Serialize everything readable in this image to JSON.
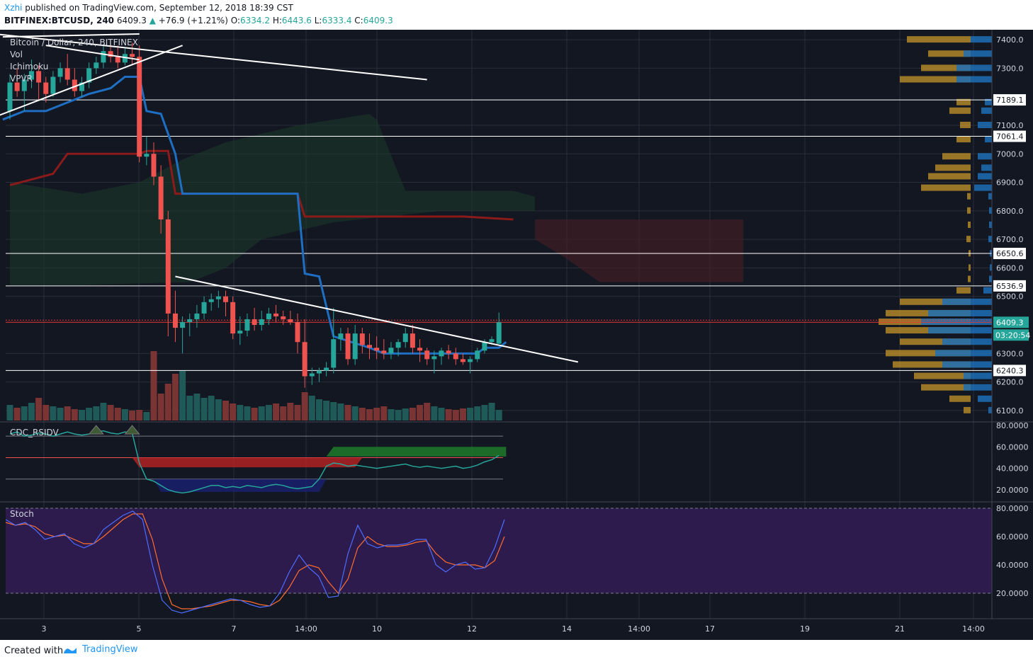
{
  "header": {
    "user": "Xzhi",
    "published": "published on TradingView.com, September 12, 2018 18:39 CST",
    "symbol": "BITFINEX:BTCUSD, 240",
    "last": "6409.3",
    "change_arrow": "▲",
    "change": "+76.9 (+1.21%)",
    "o_label": "O:",
    "o": "6334.2",
    "h_label": "H:",
    "h": "6443.6",
    "l_label": "L:",
    "l": "6333.4",
    "c_label": "C:",
    "c": "6409.3"
  },
  "legend": {
    "title": "Bitcoin / Dollar, 240, BITFINEX",
    "items": [
      "Vol",
      "Ichimoku",
      "VPVR"
    ],
    "rsi_label": "CDC_RSIDV",
    "stoch_label": "Stoch"
  },
  "footer": {
    "created": "Created with",
    "brand": "TradingView",
    "logo_icon": "tradingview-logo-icon"
  },
  "colors": {
    "background": "#131722",
    "bull": "#26a69a",
    "bear": "#ef5350",
    "kijun": "#8b1a1a",
    "tenkan": "#1e6fc4",
    "vol_bull": "#1f5a58",
    "vol_bear": "#7a3434",
    "vpvr_up": "#1f6eb5",
    "vpvr_down": "#c5962a",
    "stoch_k": "#4b6dff",
    "stoch_d": "#ff6d2d",
    "stoch_bg": "#2d1b4e"
  },
  "chart_data": {
    "type": "candlestick",
    "price_axis": {
      "ticks": [
        {
          "v": 7400,
          "label": "7400.0"
        },
        {
          "v": 7300,
          "label": "7300.0"
        },
        {
          "v": 7100,
          "label": "7100.0"
        },
        {
          "v": 7000,
          "label": "7000.0"
        },
        {
          "v": 6900,
          "label": "6900.0"
        },
        {
          "v": 6800,
          "label": "6800.0"
        },
        {
          "v": 6700,
          "label": "6700.0"
        },
        {
          "v": 6600,
          "label": "6600.0"
        },
        {
          "v": 6500,
          "label": "6500.0"
        },
        {
          "v": 6300,
          "label": "6300.0"
        },
        {
          "v": 6200,
          "label": "6200.0"
        },
        {
          "v": 6100,
          "label": "6100.0"
        }
      ],
      "range": [
        6065,
        7435
      ]
    },
    "horizontal_levels": [
      {
        "v": 7189.1,
        "label": "7189.1"
      },
      {
        "v": 7061.4,
        "label": "7061.4"
      },
      {
        "v": 6650.6,
        "label": "6650.6"
      },
      {
        "v": 6536.9,
        "label": "6536.9"
      },
      {
        "v": 6240.3,
        "label": "6240.3"
      }
    ],
    "last_price": {
      "v": 6409.3,
      "label": "6409.3",
      "countdown": "03:20:54"
    },
    "time_axis": [
      "3",
      "5",
      "7",
      "14:00",
      "10",
      "12",
      "14",
      "14:00",
      "17",
      "19",
      "21",
      "14:00"
    ],
    "candles": [
      [
        7150,
        7280,
        7120,
        7250
      ],
      [
        7250,
        7300,
        7200,
        7220
      ],
      [
        7220,
        7280,
        7150,
        7260
      ],
      [
        7260,
        7330,
        7230,
        7290
      ],
      [
        7290,
        7310,
        7190,
        7250
      ],
      [
        7250,
        7270,
        7180,
        7210
      ],
      [
        7210,
        7290,
        7200,
        7270
      ],
      [
        7270,
        7320,
        7250,
        7300
      ],
      [
        7300,
        7350,
        7240,
        7260
      ],
      [
        7260,
        7300,
        7200,
        7220
      ],
      [
        7220,
        7270,
        7200,
        7250
      ],
      [
        7250,
        7320,
        7230,
        7300
      ],
      [
        7300,
        7340,
        7280,
        7320
      ],
      [
        7320,
        7380,
        7300,
        7360
      ],
      [
        7360,
        7400,
        7320,
        7340
      ],
      [
        7340,
        7380,
        7300,
        7320
      ],
      [
        7320,
        7370,
        7310,
        7350
      ],
      [
        7350,
        7390,
        7310,
        7340
      ],
      [
        7340,
        7380,
        6970,
        6990
      ],
      [
        6990,
        7060,
        6960,
        7000
      ],
      [
        7000,
        7040,
        6890,
        6920
      ],
      [
        6920,
        6960,
        6720,
        6770
      ],
      [
        6770,
        6800,
        6360,
        6440
      ],
      [
        6440,
        6520,
        6340,
        6390
      ],
      [
        6390,
        6430,
        6300,
        6410
      ],
      [
        6410,
        6440,
        6360,
        6420
      ],
      [
        6420,
        6470,
        6390,
        6440
      ],
      [
        6440,
        6500,
        6420,
        6480
      ],
      [
        6480,
        6510,
        6450,
        6490
      ],
      [
        6490,
        6520,
        6460,
        6500
      ],
      [
        6500,
        6520,
        6430,
        6480
      ],
      [
        6480,
        6500,
        6350,
        6370
      ],
      [
        6370,
        6430,
        6330,
        6380
      ],
      [
        6380,
        6440,
        6360,
        6420
      ],
      [
        6420,
        6460,
        6380,
        6400
      ],
      [
        6400,
        6450,
        6380,
        6420
      ],
      [
        6420,
        6460,
        6400,
        6440
      ],
      [
        6440,
        6470,
        6410,
        6430
      ],
      [
        6430,
        6450,
        6400,
        6420
      ],
      [
        6420,
        6450,
        6400,
        6410
      ],
      [
        6410,
        6440,
        6300,
        6340
      ],
      [
        6340,
        6420,
        6180,
        6220
      ],
      [
        6220,
        6250,
        6190,
        6230
      ],
      [
        6230,
        6250,
        6200,
        6240
      ],
      [
        6240,
        6270,
        6220,
        6250
      ],
      [
        6250,
        6460,
        6230,
        6350
      ],
      [
        6350,
        6390,
        6310,
        6370
      ],
      [
        6370,
        6390,
        6260,
        6280
      ],
      [
        6280,
        6400,
        6260,
        6370
      ],
      [
        6370,
        6390,
        6300,
        6330
      ],
      [
        6330,
        6370,
        6280,
        6320
      ],
      [
        6320,
        6360,
        6280,
        6310
      ],
      [
        6310,
        6350,
        6280,
        6300
      ],
      [
        6300,
        6340,
        6280,
        6320
      ],
      [
        6320,
        6350,
        6290,
        6340
      ],
      [
        6340,
        6390,
        6320,
        6370
      ],
      [
        6370,
        6400,
        6300,
        6320
      ],
      [
        6320,
        6350,
        6270,
        6310
      ],
      [
        6310,
        6320,
        6260,
        6280
      ],
      [
        6280,
        6310,
        6230,
        6290
      ],
      [
        6290,
        6320,
        6260,
        6310
      ],
      [
        6310,
        6330,
        6280,
        6300
      ],
      [
        6300,
        6320,
        6260,
        6280
      ],
      [
        6280,
        6300,
        6260,
        6270
      ],
      [
        6270,
        6290,
        6230,
        6280
      ],
      [
        6280,
        6320,
        6270,
        6310
      ],
      [
        6310,
        6350,
        6300,
        6340
      ],
      [
        6340,
        6360,
        6330,
        6350
      ],
      [
        6334.2,
        6443.6,
        6333.4,
        6409.3
      ]
    ],
    "volume": [
      22,
      18,
      20,
      25,
      32,
      22,
      20,
      18,
      20,
      16,
      15,
      18,
      20,
      25,
      22,
      18,
      16,
      14,
      15,
      12,
      98,
      38,
      52,
      66,
      70,
      35,
      38,
      32,
      35,
      30,
      28,
      24,
      22,
      20,
      18,
      20,
      22,
      24,
      20,
      25,
      22,
      40,
      35,
      30,
      28,
      26,
      24,
      22,
      20,
      18,
      16,
      18,
      20,
      16,
      15,
      17,
      18,
      22,
      25,
      20,
      18,
      16,
      15,
      17,
      18,
      20,
      22,
      25,
      15
    ],
    "rsi": {
      "ticks": [
        {
          "v": 80,
          "label": "80.0000"
        },
        {
          "v": 60,
          "label": "60.0000"
        },
        {
          "v": 40,
          "label": "40.0000"
        },
        {
          "v": 20,
          "label": "20.0000"
        }
      ],
      "values": [
        72,
        74,
        70,
        71,
        73,
        72,
        70,
        72,
        74,
        72,
        71,
        72,
        74,
        75,
        73,
        72,
        74,
        73,
        45,
        30,
        28,
        24,
        20,
        18,
        17,
        18,
        20,
        22,
        24,
        24,
        22,
        23,
        22,
        24,
        23,
        22,
        24,
        25,
        24,
        22,
        21,
        22,
        23,
        30,
        42,
        45,
        44,
        42,
        43,
        42,
        41,
        40,
        41,
        42,
        43,
        44,
        42,
        41,
        42,
        41,
        40,
        41,
        42,
        40,
        41,
        43,
        46,
        48,
        52
      ]
    },
    "stoch": {
      "ticks": [
        {
          "v": 80,
          "label": "80.0000"
        },
        {
          "v": 60,
          "label": "60.0000"
        },
        {
          "v": 40,
          "label": "40.0000"
        },
        {
          "v": 20,
          "label": "20.0000"
        }
      ],
      "k": [
        72,
        68,
        70,
        65,
        58,
        60,
        62,
        55,
        52,
        55,
        65,
        70,
        75,
        78,
        72,
        40,
        15,
        8,
        6,
        8,
        10,
        12,
        14,
        16,
        15,
        12,
        10,
        11,
        20,
        35,
        47,
        38,
        32,
        17,
        18,
        48,
        68,
        55,
        52,
        54,
        54,
        55,
        58,
        58,
        40,
        35,
        40,
        42,
        37,
        38,
        52,
        72
      ],
      "d": [
        70,
        68,
        69,
        67,
        62,
        60,
        61,
        58,
        55,
        55,
        60,
        66,
        72,
        76,
        76,
        58,
        30,
        12,
        9,
        9,
        10,
        11,
        13,
        15,
        15,
        14,
        12,
        11,
        15,
        24,
        36,
        40,
        38,
        28,
        20,
        30,
        52,
        60,
        55,
        53,
        53,
        54,
        56,
        57,
        48,
        42,
        40,
        40,
        40,
        38,
        43,
        60
      ]
    }
  }
}
